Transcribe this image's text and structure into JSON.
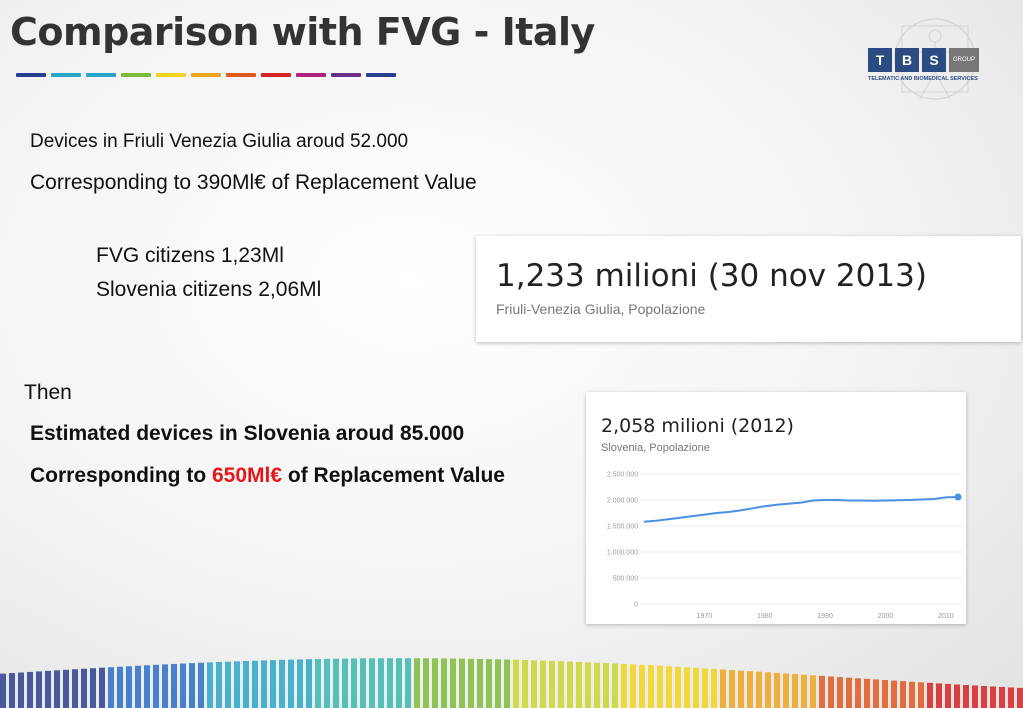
{
  "slide": {
    "title": "Comparison with FVG - Italy",
    "dash_colors": [
      "#2b3f8f",
      "#2aa6c8",
      "#2aa6c8",
      "#7cbb3a",
      "#f2d31b",
      "#f0a51e",
      "#e2581f",
      "#d72324",
      "#b0207f",
      "#6b2f8a",
      "#2b3f8f"
    ]
  },
  "logo": {
    "letters": [
      "T",
      "B",
      "S"
    ],
    "group": "GROUP",
    "subtitle": "TELEMATIC AND BIOMEDICAL SERVICES"
  },
  "body": {
    "line1": "Devices in Friuli Venezia Giulia aroud 52.000",
    "line2": "Corresponding to 390Ml€ of Replacement Value",
    "line3": "FVG citizens 1,23Ml",
    "line4": "Slovenia citizens 2,06Ml",
    "line5": "Then",
    "line6": "Estimated devices in Slovenia aroud 85.000",
    "line7_pre": "Corresponding to ",
    "line7_highlight": "650Ml€",
    "line7_post": " of Replacement Value",
    "highlight_color": "#e8161b"
  },
  "fvg_card": {
    "value": "1,233 milioni (30 nov 2013)",
    "caption": "Friuli-Venezia Giulia, Popolazione"
  },
  "slovenia_card": {
    "value": "2,058 milioni (2012)",
    "caption": "Slovenia, Popolazione"
  },
  "chart_data": {
    "type": "line",
    "title": "",
    "xlabel": "",
    "ylabel": "",
    "xlim": [
      1960,
      2012
    ],
    "ylim": [
      0,
      2500000
    ],
    "yticks": [
      0,
      500000,
      1000000,
      1500000,
      2000000,
      2500000
    ],
    "ytick_labels": [
      "0",
      "500.000",
      "1.000.000",
      "1.500.000",
      "2.000.000",
      "2.500.000"
    ],
    "xticks": [
      1970,
      1980,
      1990,
      2000,
      2010
    ],
    "xtick_labels": [
      "1970",
      "1980",
      "1990",
      "2000",
      "2010"
    ],
    "grid": true,
    "line_color": "#4a90e2",
    "series": [
      {
        "x": [
          1960,
          1962,
          1964,
          1966,
          1968,
          1970,
          1972,
          1974,
          1976,
          1978,
          1980,
          1982,
          1984,
          1986,
          1988,
          1990,
          1992,
          1994,
          1996,
          1998,
          2000,
          2002,
          2004,
          2006,
          2008,
          2010,
          2012
        ],
        "values": [
          1580000,
          1600000,
          1630000,
          1660000,
          1690000,
          1720000,
          1750000,
          1770000,
          1800000,
          1840000,
          1880000,
          1910000,
          1930000,
          1950000,
          1990000,
          2000000,
          2000000,
          1990000,
          1990000,
          1985000,
          1990000,
          1995000,
          2000000,
          2010000,
          2020000,
          2050000,
          2058000
        ]
      }
    ]
  }
}
